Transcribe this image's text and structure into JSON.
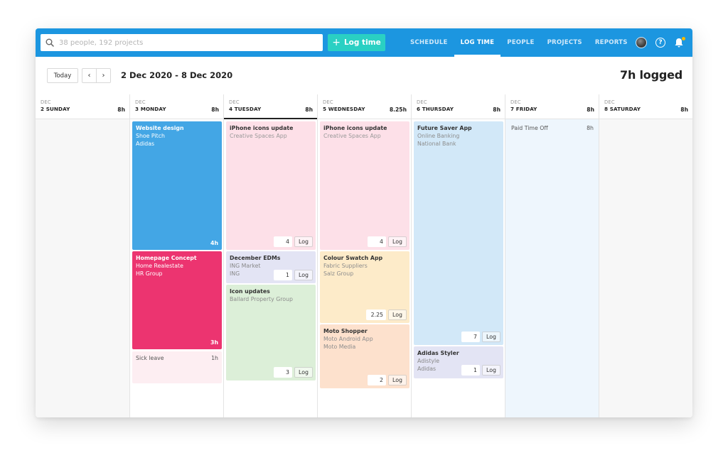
{
  "search": {
    "placeholder": "38 people, 192 projects"
  },
  "log_button": {
    "label": "Log time"
  },
  "nav": {
    "items": [
      {
        "label": "SCHEDULE"
      },
      {
        "label": "LOG TIME",
        "active": true
      },
      {
        "label": "PEOPLE"
      },
      {
        "label": "PROJECTS"
      },
      {
        "label": "REPORTS"
      }
    ],
    "help_label": "?"
  },
  "toolbar": {
    "today_label": "Today",
    "date_range": "2 Dec 2020 - 8 Dec 2020",
    "logged": "7h logged"
  },
  "days": [
    {
      "month": "DEC",
      "day": "2 SUNDAY",
      "hours": "8h"
    },
    {
      "month": "DEC",
      "day": "3 MONDAY",
      "hours": "8h"
    },
    {
      "month": "DEC",
      "day": "4 TUESDAY",
      "hours": "8h"
    },
    {
      "month": "DEC",
      "day": "5 WEDNESDAY",
      "hours": "8.25h"
    },
    {
      "month": "DEC",
      "day": "6 THURSDAY",
      "hours": "8h"
    },
    {
      "month": "DEC",
      "day": "7 FRIDAY",
      "hours": "8h"
    },
    {
      "month": "DEC",
      "day": "8 SATURDAY",
      "hours": "8h"
    }
  ],
  "entries": {
    "monday": [
      {
        "title": "Website design",
        "project": "Shoe Pitch",
        "client": "Adidas",
        "hours": "4h"
      },
      {
        "title": "Homepage Concept",
        "project": "Home Realestate",
        "client": "HR Group",
        "hours": "3h"
      },
      {
        "title": "Sick leave",
        "hours": "1h"
      }
    ],
    "tuesday": [
      {
        "title": "iPhone icons update",
        "project": "Creative Spaces App",
        "value": "4",
        "log": "Log"
      },
      {
        "title": "December EDMs",
        "project": "ING Market",
        "client": "ING",
        "value": "1",
        "log": "Log"
      },
      {
        "title": "Icon updates",
        "project": "Ballard Property Group",
        "value": "3",
        "log": "Log"
      }
    ],
    "wednesday": [
      {
        "title": "iPhone icons update",
        "project": "Creative Spaces App",
        "value": "4",
        "log": "Log"
      },
      {
        "title": "Colour Swatch App",
        "project": "Fabric Suppliers",
        "client": "Salz Group",
        "value": "2.25",
        "log": "Log"
      },
      {
        "title": "Moto Shopper",
        "project": "Moto Android App",
        "client": "Moto Media",
        "value": "2",
        "log": "Log"
      }
    ],
    "thursday": [
      {
        "title": "Future Saver App",
        "project": "Online Banking",
        "client": "National Bank",
        "value": "7",
        "log": "Log"
      },
      {
        "title": "Adidas Styler",
        "project": "Adistyle",
        "client": "Adidas",
        "value": "1",
        "log": "Log"
      }
    ],
    "friday": [
      {
        "title": "Paid Time Off",
        "hours": "8h"
      }
    ]
  },
  "colors": {
    "nav_blue": "#1c96e0",
    "log_button": "#2ad0c3",
    "website_design": "#43a6e5",
    "homepage_concept": "#ec3470",
    "notification_dot": "#f5b900"
  }
}
